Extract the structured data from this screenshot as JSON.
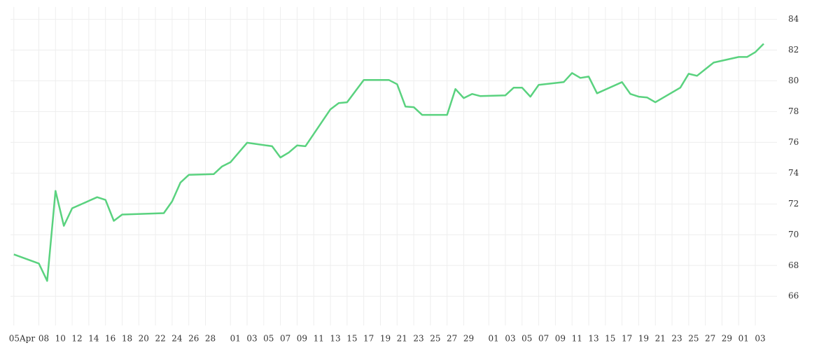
{
  "chart_data": {
    "type": "line",
    "x": [
      0,
      3,
      4,
      5,
      6,
      7,
      10,
      11,
      12,
      13,
      18,
      19,
      20,
      21,
      24,
      25,
      26,
      28,
      31,
      32,
      33,
      34,
      35,
      38,
      39,
      40,
      42,
      45,
      46,
      47,
      48,
      49,
      52,
      53,
      54,
      55,
      56,
      59,
      60,
      61,
      62,
      63,
      66,
      67,
      68,
      69,
      70,
      73,
      74,
      75,
      76,
      77,
      80,
      81,
      82,
      84,
      87,
      88,
      89,
      90
    ],
    "series": [
      {
        "color": "#5ad27f",
        "values": [
          68.72,
          68.13,
          67.0,
          72.85,
          70.58,
          71.72,
          72.44,
          72.26,
          70.9,
          71.31,
          71.4,
          72.17,
          73.39,
          73.89,
          73.94,
          74.44,
          74.71,
          75.98,
          75.75,
          75.02,
          75.34,
          75.8,
          75.75,
          78.15,
          78.56,
          78.61,
          80.06,
          80.06,
          79.78,
          78.33,
          78.29,
          77.79,
          77.79,
          79.47,
          78.88,
          79.15,
          79.01,
          79.06,
          79.56,
          79.56,
          78.97,
          79.74,
          79.92,
          80.51,
          80.19,
          80.28,
          79.19,
          79.92,
          79.15,
          78.97,
          78.92,
          78.61,
          79.56,
          80.46,
          80.33,
          81.19,
          81.55,
          81.55,
          81.87,
          82.41
        ]
      }
    ],
    "xlim": [
      -0.4,
      91.6
    ],
    "xticks": [
      {
        "value": 0,
        "label": "05Apr"
      },
      {
        "value": 3,
        "label": "08"
      },
      {
        "value": 5,
        "label": "10"
      },
      {
        "value": 7,
        "label": "12"
      },
      {
        "value": 9,
        "label": "14"
      },
      {
        "value": 11,
        "label": "16"
      },
      {
        "value": 13,
        "label": "18"
      },
      {
        "value": 15,
        "label": "20"
      },
      {
        "value": 17,
        "label": "22"
      },
      {
        "value": 19,
        "label": "24"
      },
      {
        "value": 21,
        "label": "26"
      },
      {
        "value": 23,
        "label": "28"
      },
      {
        "value": 26,
        "label": "01"
      },
      {
        "value": 28,
        "label": "03"
      },
      {
        "value": 30,
        "label": "05"
      },
      {
        "value": 32,
        "label": "07"
      },
      {
        "value": 34,
        "label": "09"
      },
      {
        "value": 36,
        "label": "11"
      },
      {
        "value": 38,
        "label": "13"
      },
      {
        "value": 40,
        "label": "15"
      },
      {
        "value": 42,
        "label": "17"
      },
      {
        "value": 44,
        "label": "19"
      },
      {
        "value": 46,
        "label": "21"
      },
      {
        "value": 48,
        "label": "23"
      },
      {
        "value": 50,
        "label": "25"
      },
      {
        "value": 52,
        "label": "27"
      },
      {
        "value": 54,
        "label": "29"
      },
      {
        "value": 57,
        "label": "01"
      },
      {
        "value": 59,
        "label": "03"
      },
      {
        "value": 61,
        "label": "05"
      },
      {
        "value": 63,
        "label": "07"
      },
      {
        "value": 65,
        "label": "09"
      },
      {
        "value": 67,
        "label": "11"
      },
      {
        "value": 69,
        "label": "13"
      },
      {
        "value": 71,
        "label": "15"
      },
      {
        "value": 73,
        "label": "17"
      },
      {
        "value": 75,
        "label": "19"
      },
      {
        "value": 77,
        "label": "21"
      },
      {
        "value": 79,
        "label": "23"
      },
      {
        "value": 81,
        "label": "25"
      },
      {
        "value": 83,
        "label": "27"
      },
      {
        "value": 85,
        "label": "29"
      },
      {
        "value": 87,
        "label": "01"
      },
      {
        "value": 89,
        "label": "03"
      }
    ],
    "ylim": [
      64.1,
      84.8
    ],
    "yticks": [
      66,
      68,
      70,
      72,
      74,
      76,
      78,
      80,
      82,
      84
    ],
    "grid": true
  }
}
